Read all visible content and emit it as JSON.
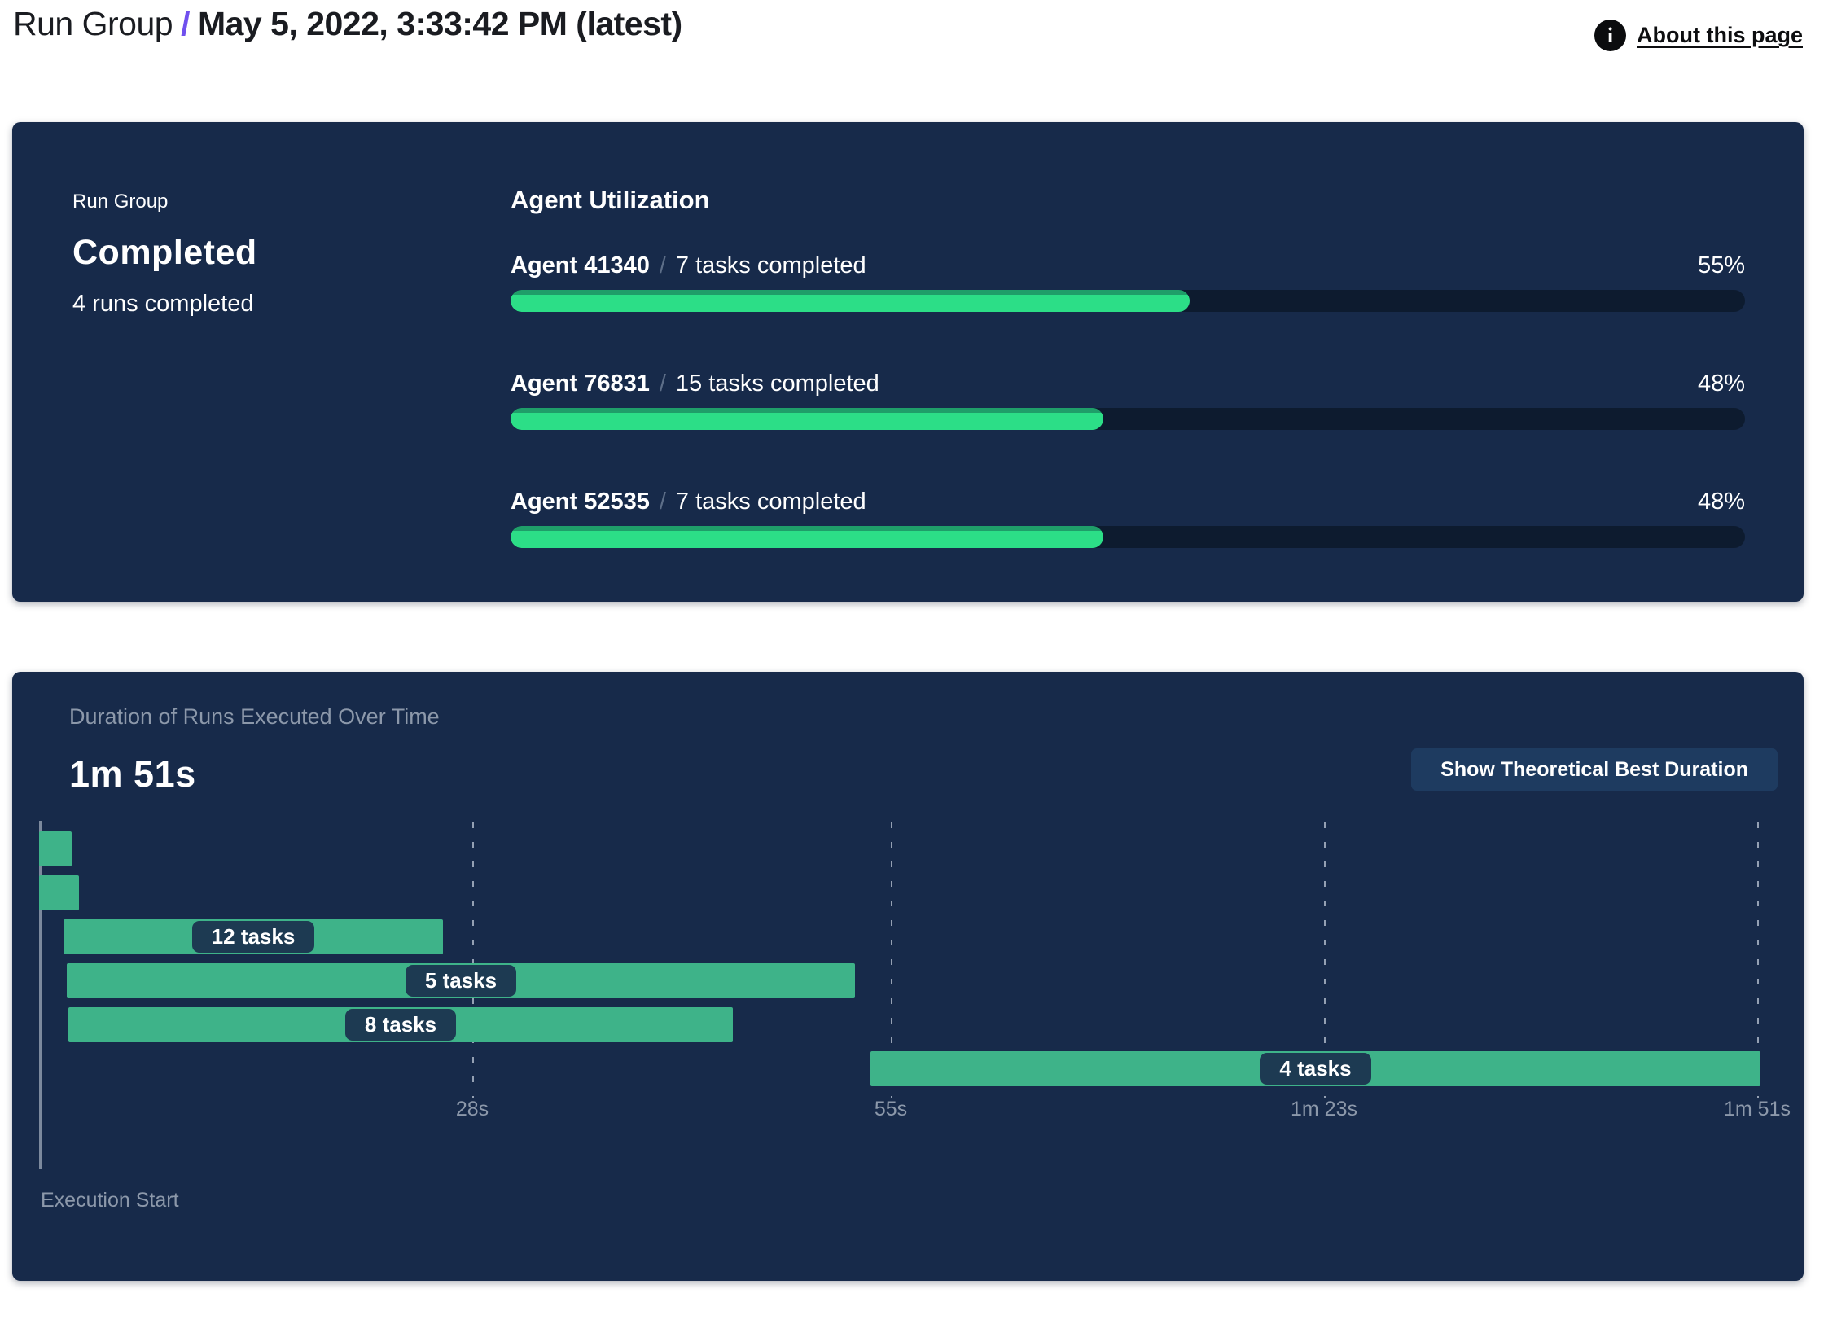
{
  "header": {
    "breadcrumb_root": "Run Group",
    "breadcrumb_separator": "/",
    "title": "May 5, 2022, 3:33:42 PM (latest)",
    "about_link_label": "About this page",
    "info_icon_glyph": "i"
  },
  "summary_panel": {
    "label": "Run Group",
    "status": "Completed",
    "runs_completed": "4 runs completed",
    "utilization": {
      "heading": "Agent Utilization",
      "separator": "/",
      "agents": [
        {
          "name": "Agent 41340",
          "tasks": "7 tasks completed",
          "percent": 55,
          "percent_label": "55%"
        },
        {
          "name": "Agent 76831",
          "tasks": "15 tasks completed",
          "percent": 48,
          "percent_label": "48%"
        },
        {
          "name": "Agent 52535",
          "tasks": "7 tasks completed",
          "percent": 48,
          "percent_label": "48%"
        }
      ]
    }
  },
  "duration_panel": {
    "subtitle": "Duration of Runs Executed Over Time",
    "total_duration": "1m 51s",
    "button_label": "Show Theoretical Best Duration",
    "execution_start_label": "Execution Start"
  },
  "chart_data": {
    "type": "gantt",
    "title": "Duration of Runs Executed Over Time",
    "total_duration_label": "1m 51s",
    "xlabel": "Execution Start",
    "xlim": [
      0,
      111.2
    ],
    "grid": true,
    "x_ticks": [
      {
        "seconds": 28,
        "label": "28s"
      },
      {
        "seconds": 55,
        "label": "55s"
      },
      {
        "seconds": 83,
        "label": "1m 23s"
      },
      {
        "seconds": 111,
        "label": "1m 51s"
      }
    ],
    "bars": [
      {
        "row": 1,
        "start_s": 0,
        "end_s": 2.1,
        "label": ""
      },
      {
        "row": 2,
        "start_s": 0,
        "end_s": 2.6,
        "label": ""
      },
      {
        "row": 3,
        "start_s": 1.6,
        "end_s": 26.1,
        "label": "12 tasks"
      },
      {
        "row": 4,
        "start_s": 1.8,
        "end_s": 52.7,
        "label": "5 tasks"
      },
      {
        "row": 5,
        "start_s": 1.9,
        "end_s": 44.8,
        "label": "8 tasks"
      },
      {
        "row": 6,
        "start_s": 53.7,
        "end_s": 111.2,
        "label": "4 tasks"
      }
    ],
    "colors": {
      "bar": "#3EB389",
      "label_pill": "#1D3A52",
      "gridline": "#BEC8D6",
      "progress_fill": "#2CDE87",
      "progress_track": "#0D1B2F",
      "panel_background": "#172A4A",
      "accent_separator": "#7050EE",
      "muted_text": "#8C98AA"
    }
  }
}
